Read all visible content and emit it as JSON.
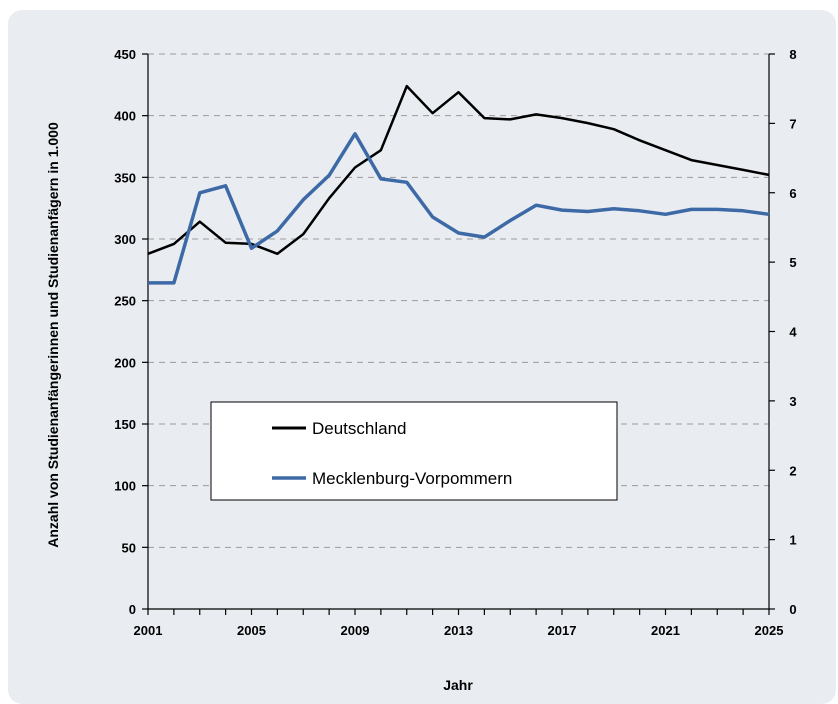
{
  "chart_data": {
    "type": "line",
    "xlabel": "Jahr",
    "ylabel": "Anzahl von Studienanfängerinnen und Studienanfägern in 1.000",
    "x": [
      2001,
      2002,
      2003,
      2004,
      2005,
      2006,
      2007,
      2008,
      2009,
      2010,
      2011,
      2012,
      2013,
      2014,
      2015,
      2016,
      2017,
      2018,
      2019,
      2020,
      2021,
      2022,
      2023,
      2024,
      2025
    ],
    "xticks": [
      2001,
      2005,
      2009,
      2013,
      2017,
      2021,
      2025
    ],
    "ylim": [
      0,
      450
    ],
    "yticks": [
      0,
      50,
      100,
      150,
      200,
      250,
      300,
      350,
      400,
      450
    ],
    "y2lim": [
      0,
      8
    ],
    "y2ticks": [
      0,
      1,
      2,
      3,
      4,
      5,
      6,
      7,
      8
    ],
    "grid": "horizontal dashed",
    "legend_position": "center-left",
    "series": [
      {
        "name": "Deutschland",
        "axis": "left",
        "color": "#000000",
        "values": [
          288,
          296,
          314,
          297,
          296,
          288,
          304,
          333,
          358,
          372,
          424,
          402,
          419,
          398,
          397,
          401,
          398,
          394,
          389,
          380,
          372,
          364,
          360,
          356,
          352
        ]
      },
      {
        "name": "Mecklenburg-Vorpommern",
        "axis": "right",
        "color": "#3d6aa6",
        "values": [
          4.7,
          4.7,
          6.0,
          6.1,
          5.2,
          5.45,
          5.9,
          6.25,
          6.85,
          6.2,
          6.15,
          5.65,
          5.42,
          5.36,
          5.6,
          5.82,
          5.75,
          5.73,
          5.77,
          5.74,
          5.69,
          5.76,
          5.76,
          5.74,
          5.69
        ]
      }
    ]
  }
}
